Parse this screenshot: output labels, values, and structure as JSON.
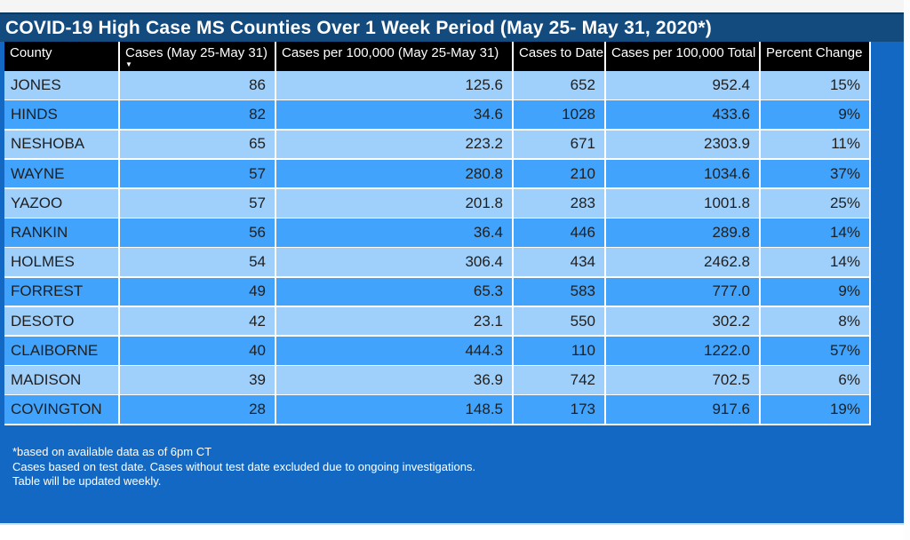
{
  "title": "COVID-19 High Case MS Counties Over 1 Week Period (May 25- May 31, 2020*)",
  "chart_data": {
    "type": "table",
    "title": "COVID-19 High Case MS Counties Over 1 Week Period (May 25- May 31, 2020*)",
    "columns": [
      "County",
      "Cases (May 25-May 31)",
      "Cases per 100,000 (May 25-May 31)",
      "Cases to Date",
      "Cases per 100,000 Total",
      "Percent Change"
    ],
    "sorted_column": "Cases (May 25-May 31)",
    "sort_direction": "descending",
    "rows": [
      [
        "JONES",
        "86",
        "125.6",
        "652",
        "952.4",
        "15%"
      ],
      [
        "HINDS",
        "82",
        "34.6",
        "1028",
        "433.6",
        "9%"
      ],
      [
        "NESHOBA",
        "65",
        "223.2",
        "671",
        "2303.9",
        "11%"
      ],
      [
        "WAYNE",
        "57",
        "280.8",
        "210",
        "1034.6",
        "37%"
      ],
      [
        "YAZOO",
        "57",
        "201.8",
        "283",
        "1001.8",
        "25%"
      ],
      [
        "RANKIN",
        "56",
        "36.4",
        "446",
        "289.8",
        "14%"
      ],
      [
        "HOLMES",
        "54",
        "306.4",
        "434",
        "2462.8",
        "14%"
      ],
      [
        "FORREST",
        "49",
        "65.3",
        "583",
        "777.0",
        "9%"
      ],
      [
        "DESOTO",
        "42",
        "23.1",
        "550",
        "302.2",
        "8%"
      ],
      [
        "CLAIBORNE",
        "40",
        "444.3",
        "110",
        "1222.0",
        "57%"
      ],
      [
        "MADISON",
        "39",
        "36.9",
        "742",
        "702.5",
        "6%"
      ],
      [
        "COVINGTON",
        "28",
        "148.5",
        "173",
        "917.6",
        "19%"
      ]
    ]
  },
  "footnotes": [
    "*based on available data as of 6pm CT",
    "Cases based on test date. Cases without test date excluded due to ongoing investigations.",
    "Table will be updated weekly."
  ],
  "icons": {
    "sort_descending": "▼"
  },
  "colors": {
    "canvas_blue": "#1268C2",
    "title_navy": "#134B7E",
    "header_black": "#000000",
    "row_light": "#9FCFFB",
    "row_dark": "#41A3FB",
    "text_dark": "#1F1F1F",
    "text_white": "#FFFFFF"
  }
}
